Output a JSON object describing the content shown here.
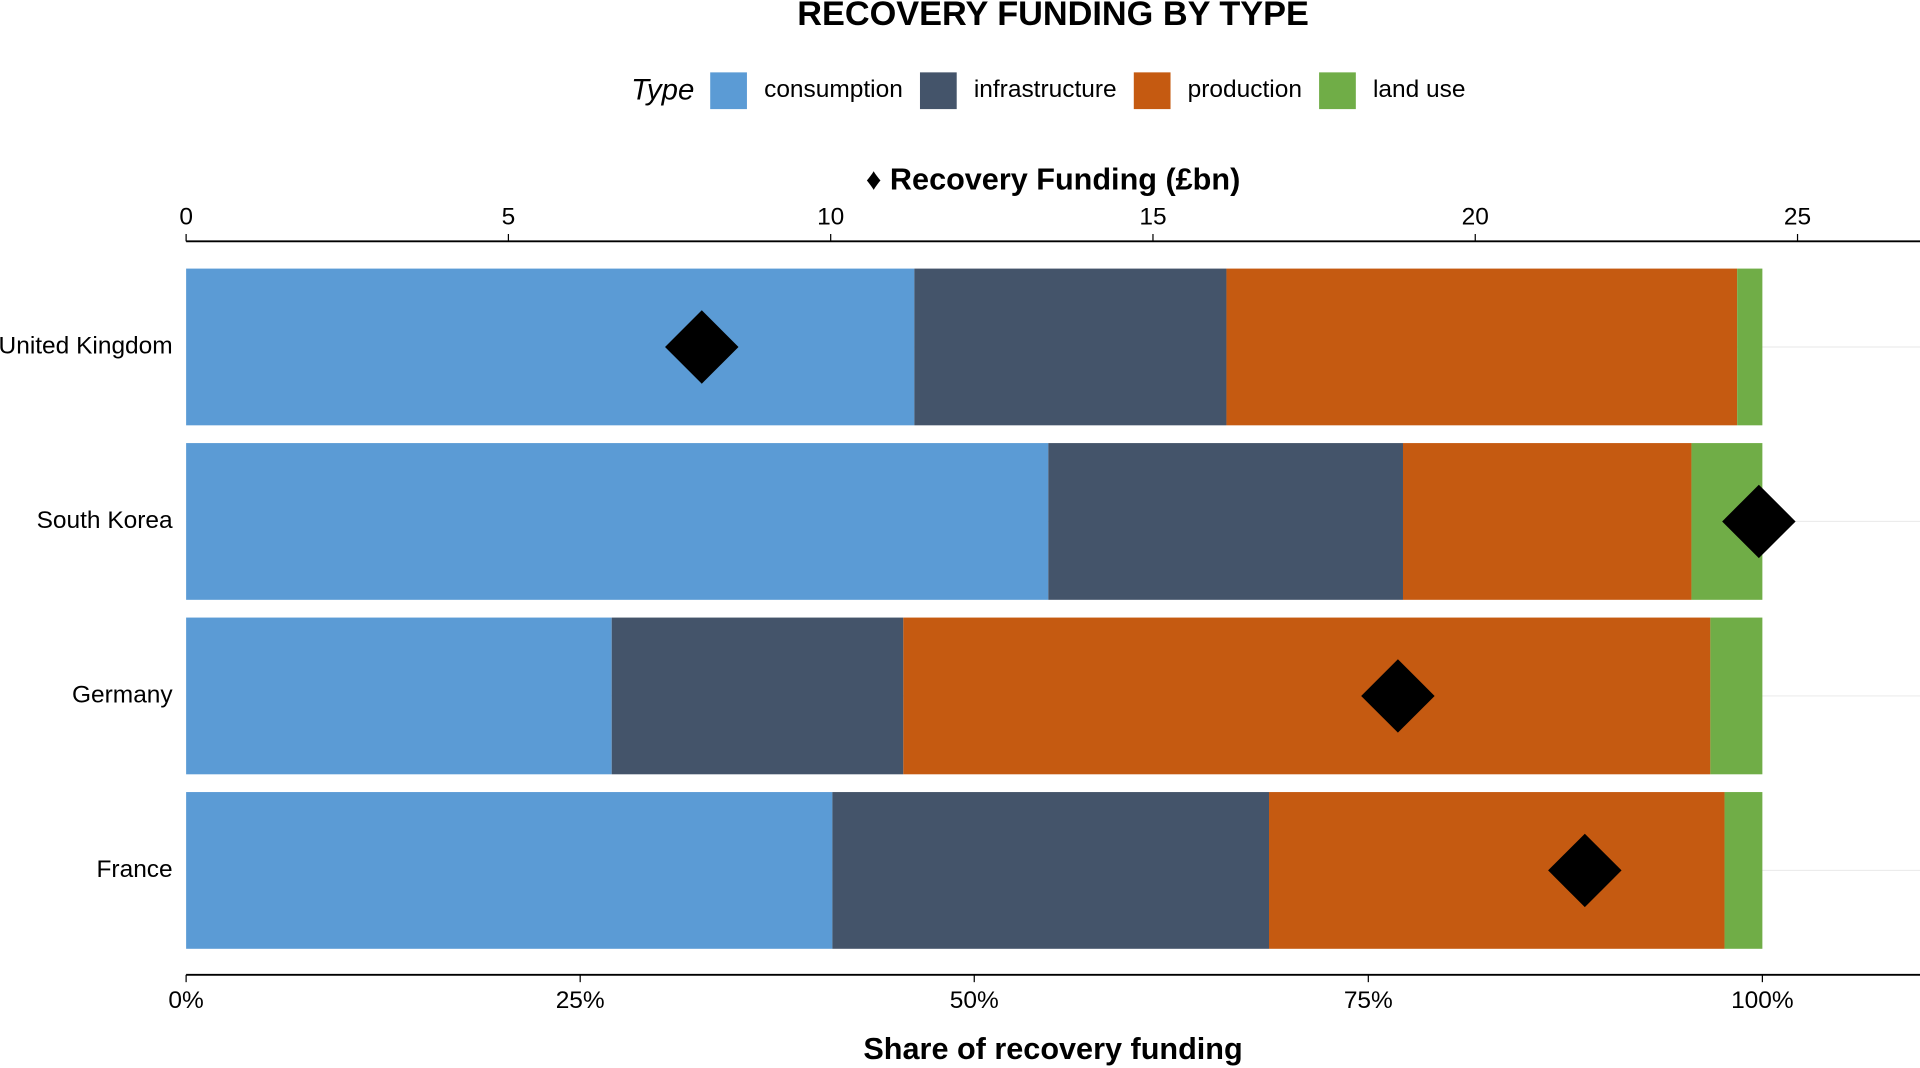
{
  "chart_data": {
    "type": "stacked-bar",
    "title": "RECOVERY FUNDING BY TYPE",
    "legend_title": "Type",
    "legend": "top",
    "grid": true,
    "categories": [
      "United Kingdom",
      "South Korea",
      "Germany",
      "France"
    ],
    "series": [
      {
        "name": "consumption",
        "color": "#5b9bd5",
        "values": [
          46.2,
          54.7,
          27.0,
          41.0
        ]
      },
      {
        "name": "infrastructure",
        "color": "#44546a",
        "values": [
          19.8,
          22.5,
          18.5,
          27.7
        ]
      },
      {
        "name": "production",
        "color": "#c55a11",
        "values": [
          32.4,
          18.3,
          51.2,
          28.9
        ]
      },
      {
        "name": "land use",
        "color": "#70ad47",
        "values": [
          1.6,
          4.5,
          3.3,
          2.4
        ]
      },
      {
        "color": "#000000",
        "marker": "diamond",
        "axis": "x2",
        "values": [
          8.0,
          24.4,
          18.8,
          21.7
        ]
      }
    ],
    "xlabel": "Share of recovery funding",
    "xlim": [
      0,
      110
    ],
    "xticks": [
      {
        "value": 0,
        "label": "0%"
      },
      {
        "value": 25,
        "label": "25%"
      },
      {
        "value": 50,
        "label": "50%"
      },
      {
        "value": 75,
        "label": "75%"
      },
      {
        "value": 100,
        "label": "100%"
      }
    ],
    "x2label": "♦ Recovery Funding (£bn)",
    "x2lim": [
      0,
      26.9
    ],
    "x2ticks": [
      0,
      5,
      10,
      15,
      20,
      25
    ]
  }
}
